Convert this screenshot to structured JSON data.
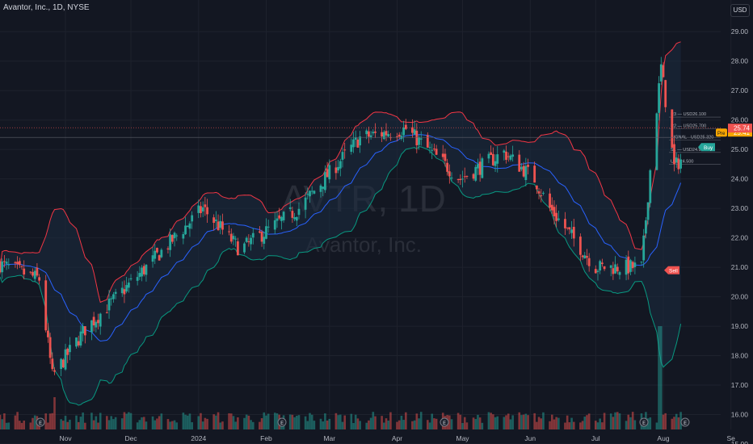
{
  "header": {
    "symbol_line": "Avantor, Inc., 1D, NYSE",
    "currency": "USD"
  },
  "watermark": {
    "ticker": "AVTR, 1D",
    "name": "Avantor, Inc."
  },
  "colors": {
    "background": "#131722",
    "grid": "#1e222d",
    "up": "#26a69a",
    "down": "#ef5350",
    "basis": "#2962ff",
    "upper_band": "#f23645",
    "lower_band": "#089981",
    "band_fill": "#1c2b3f",
    "price_badge": "#ef5350",
    "pre_badge": "#f7a600",
    "buy_badge": "#26a69a"
  },
  "price_badges": {
    "pre": {
      "label": "Pre",
      "value": "25.41"
    },
    "last": {
      "value": "25.74"
    }
  },
  "signals": {
    "buy": "Buy",
    "sell": "Sell"
  },
  "pivot_labels": [
    "R3 — USD26.100",
    "R2 — USD25.700",
    "SIGNAL - USD25.320",
    "S1 — USD24.900",
    "USD24.500"
  ],
  "event_marker_icons": [
    "earnings-icon",
    "earnings-icon",
    "earnings-icon",
    "earnings-icon",
    "earnings-icon",
    "flash-icon"
  ],
  "chart_data": {
    "type": "candlestick",
    "title": "Avantor, Inc., 1D, NYSE",
    "y_axis": {
      "ticks": [
        "29.00",
        "28.00",
        "27.00",
        "26.00",
        "25.00",
        "24.00",
        "23.00",
        "22.00",
        "21.00",
        "20.00",
        "19.00",
        "18.00",
        "17.00",
        "16.00",
        "15.00"
      ],
      "range": [
        15.0,
        29.5
      ]
    },
    "x_axis": {
      "ticks": [
        "Nov",
        "Dec",
        "2024",
        "Feb",
        "Mar",
        "Apr",
        "May",
        "Jun",
        "Jul",
        "Aug",
        "Se"
      ]
    },
    "indicators": [
      "Bollinger Bands",
      "Volume",
      "Pivot Points"
    ],
    "close_path_keypoints": [
      {
        "date": "Oct 2",
        "close": 21.1
      },
      {
        "date": "Oct 20",
        "close": 20.6
      },
      {
        "date": "Oct 26",
        "close": 17.3
      },
      {
        "date": "Nov 10",
        "close": 18.9
      },
      {
        "date": "Dec 8",
        "close": 21.0
      },
      {
        "date": "Jan 3",
        "close": 23.0
      },
      {
        "date": "Jan 20",
        "close": 21.6
      },
      {
        "date": "Feb 16",
        "close": 23.0
      },
      {
        "date": "Mar 15",
        "close": 25.4
      },
      {
        "date": "Apr 5",
        "close": 25.7
      },
      {
        "date": "Apr 30",
        "close": 24.0
      },
      {
        "date": "May 20",
        "close": 24.9
      },
      {
        "date": "Jun 3",
        "close": 24.0
      },
      {
        "date": "Jun 10",
        "close": 23.0
      },
      {
        "date": "Jul 1",
        "close": 21.0
      },
      {
        "date": "Jul 22",
        "close": 21.0
      },
      {
        "date": "Jul 26",
        "close": 24.3
      },
      {
        "date": "Jul 31",
        "close": 27.8
      },
      {
        "date": "Aug 6",
        "close": 24.4
      },
      {
        "date": "Aug 12",
        "close": 24.9
      }
    ]
  }
}
